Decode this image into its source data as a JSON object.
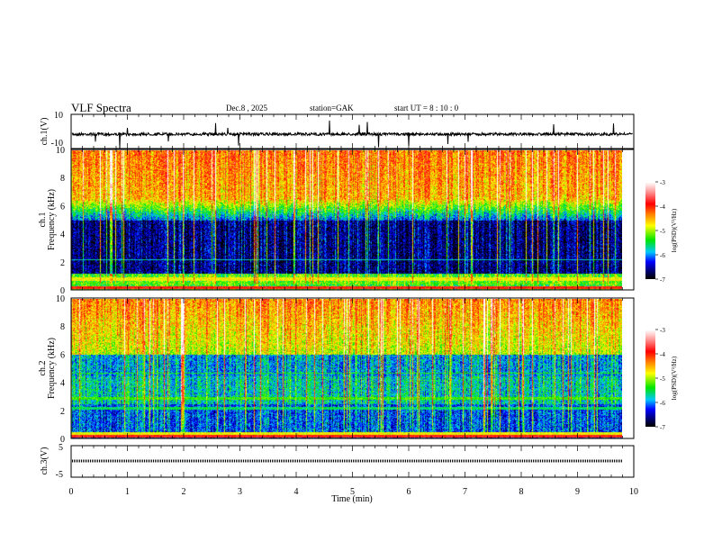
{
  "header": {
    "title": "VLF  Spectra",
    "date": "Dec.8  , 2025",
    "station": "station=GAK",
    "start": "start  UT  =   8  : 10 : 0"
  },
  "chart_data": [
    {
      "type": "line",
      "name": "ch1-waveform",
      "ylabel": "ch.1(V)",
      "ylim": [
        -10,
        10
      ],
      "yticks": [
        "10",
        "-10"
      ],
      "baseline": 0
    },
    {
      "type": "heatmap",
      "name": "ch1-spectrogram",
      "ylabel_lines": [
        "ch.1",
        "Frequency  (kHz)"
      ],
      "ylim": [
        0,
        10
      ],
      "yticks": [
        "0",
        "2",
        "4",
        "6",
        "8",
        "10"
      ],
      "colorbar": {
        "label": "log(PSD)(V²/Hz)",
        "range": [
          -7,
          -3
        ],
        "ticks": [
          "-3",
          "-4",
          "-5",
          "-6",
          "-7"
        ]
      }
    },
    {
      "type": "heatmap",
      "name": "ch2-spectrogram",
      "ylabel_lines": [
        "ch.2",
        "Frequency  (kHz)"
      ],
      "ylim": [
        0,
        10
      ],
      "yticks": [
        "0",
        "2",
        "4",
        "6",
        "8",
        "10"
      ],
      "colorbar": {
        "label": "log(PSD)(V²/Hz)",
        "range": [
          -7,
          -3
        ],
        "ticks": [
          "-3",
          "-4",
          "-5",
          "-6",
          "-7"
        ]
      }
    },
    {
      "type": "line",
      "name": "ch3-waveform",
      "ylabel": "ch.3(V)",
      "ylim": [
        -5,
        5
      ],
      "yticks": [
        "5",
        "-5"
      ],
      "baseline": 1.5
    }
  ],
  "xaxis": {
    "label": "Time  (min)",
    "xlim": [
      0,
      10
    ],
    "ticks": [
      "0",
      "1",
      "2",
      "3",
      "4",
      "5",
      "6",
      "7",
      "8",
      "9",
      "10"
    ]
  }
}
